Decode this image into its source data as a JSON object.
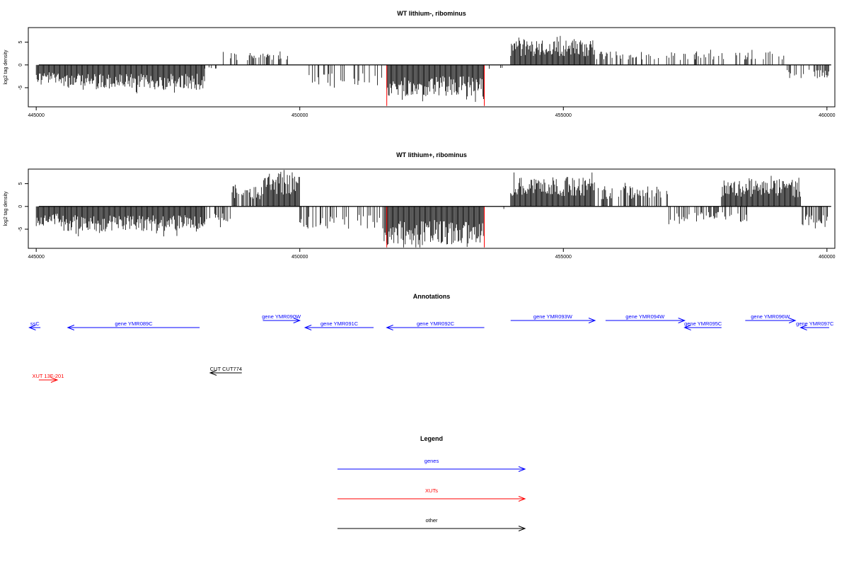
{
  "chart_data": [
    {
      "type": "bar",
      "title": "WT lithium-, ribominus",
      "ylabel": "log2 tag density",
      "xlim": [
        444850,
        460150
      ],
      "ylim": [
        -9.2,
        8.2
      ],
      "x_ticks": [
        445000,
        450000,
        455000,
        460000
      ],
      "x_tick_labels": [
        "445000",
        "450000",
        "455000",
        "460000"
      ],
      "y_ticks": [
        -5,
        0,
        5
      ],
      "y_tick_labels": [
        "-5",
        "0",
        "5"
      ],
      "baseline": [
        445050,
        460080
      ],
      "highlight_x": [
        451650,
        453500
      ],
      "highlight_y": -9.0,
      "highlight_color": "#ff0000",
      "bar_color": "#000000",
      "series": [
        {
          "bars": [
            [
              445000,
              445600,
              1,
              -4
            ],
            [
              445600,
              448200,
              1,
              -5.5
            ],
            [
              448200,
              448500,
              0.2,
              -1
            ],
            [
              448500,
              449800,
              0.3,
              3
            ],
            [
              449800,
              450100,
              0.3,
              0
            ],
            [
              450100,
              451600,
              0.3,
              -5
            ],
            [
              451650,
              453500,
              1,
              -7
            ],
            [
              453500,
              454000,
              0.1,
              -0.8
            ],
            [
              454000,
              455600,
              1,
              5.5
            ],
            [
              455600,
              459200,
              0.3,
              3
            ],
            [
              459200,
              460050,
              0.5,
              -3
            ]
          ]
        }
      ]
    },
    {
      "type": "bar",
      "title": "WT lithium+, ribominus",
      "ylabel": "log2 tag density",
      "xlim": [
        444850,
        460150
      ],
      "ylim": [
        -9.2,
        8.2
      ],
      "x_ticks": [
        445000,
        450000,
        455000,
        460000
      ],
      "x_tick_labels": [
        "445000",
        "450000",
        "455000",
        "460000"
      ],
      "y_ticks": [
        -5,
        0,
        5
      ],
      "y_tick_labels": [
        "-5",
        "0",
        "5"
      ],
      "baseline": [
        445050,
        460080
      ],
      "highlight_x": [
        451650,
        453500
      ],
      "highlight_y": -9.0,
      "highlight_color": "#ff0000",
      "bar_color": "#000000",
      "series": [
        {
          "bars": [
            [
              445000,
              445600,
              1,
              -4.5
            ],
            [
              445600,
              448200,
              1,
              -5.5
            ],
            [
              448200,
              448700,
              0.4,
              -4
            ],
            [
              448700,
              449300,
              0.7,
              4.5
            ],
            [
              449300,
              450000,
              1,
              7.5
            ],
            [
              450000,
              451600,
              0.3,
              -5
            ],
            [
              451600,
              453500,
              1,
              -8.5
            ],
            [
              453500,
              454000,
              0.1,
              -0.8
            ],
            [
              454000,
              455600,
              1,
              6.5
            ],
            [
              455600,
              457000,
              0.5,
              4.5
            ],
            [
              457000,
              458500,
              0.4,
              -3.5
            ],
            [
              458000,
              459500,
              1,
              5.8
            ],
            [
              459500,
              460050,
              0.6,
              -4.5
            ]
          ]
        }
      ]
    }
  ],
  "annotations": {
    "title": "Annotations",
    "features": [
      {
        "label": "ssC",
        "x1": 445080,
        "x2": 444870,
        "y": 0,
        "color": "#0000ff"
      },
      {
        "label": "gene YMR089C",
        "x1": 448100,
        "x2": 445600,
        "y": 0,
        "color": "#0000ff"
      },
      {
        "label": "gene YMR090W",
        "x1": 449300,
        "x2": 450000,
        "y": 1,
        "color": "#0000ff"
      },
      {
        "label": "gene YMR091C",
        "x1": 451400,
        "x2": 450100,
        "y": 0,
        "color": "#0000ff"
      },
      {
        "label": "gene YMR092C",
        "x1": 453500,
        "x2": 451650,
        "y": 0,
        "color": "#0000ff"
      },
      {
        "label": "gene YMR093W",
        "x1": 454000,
        "x2": 455600,
        "y": 1,
        "color": "#0000ff"
      },
      {
        "label": "gene YMR094W",
        "x1": 455800,
        "x2": 457300,
        "y": 1,
        "color": "#0000ff"
      },
      {
        "label": "gene YMR095C",
        "x1": 458000,
        "x2": 457300,
        "y": 0,
        "color": "#0000ff"
      },
      {
        "label": "gene YMR096W",
        "x1": 458450,
        "x2": 459400,
        "y": 1,
        "color": "#0000ff"
      },
      {
        "label": "gene YMR097C",
        "x1": 461200,
        "x2": 459500,
        "y": 0,
        "color": "#0000ff"
      },
      {
        "label": "CUT CUT774",
        "x1": 448900,
        "x2": 448300,
        "y": -1,
        "color": "#000000"
      },
      {
        "label": "XUT 13F-201",
        "x1": 445050,
        "x2": 445400,
        "y": -2,
        "color": "#ff0000"
      }
    ]
  },
  "legend": {
    "title": "Legend",
    "items": [
      {
        "label": "genes",
        "color": "#0000ff"
      },
      {
        "label": "XUTs",
        "color": "#ff0000"
      },
      {
        "label": "other",
        "color": "#000000"
      }
    ]
  }
}
